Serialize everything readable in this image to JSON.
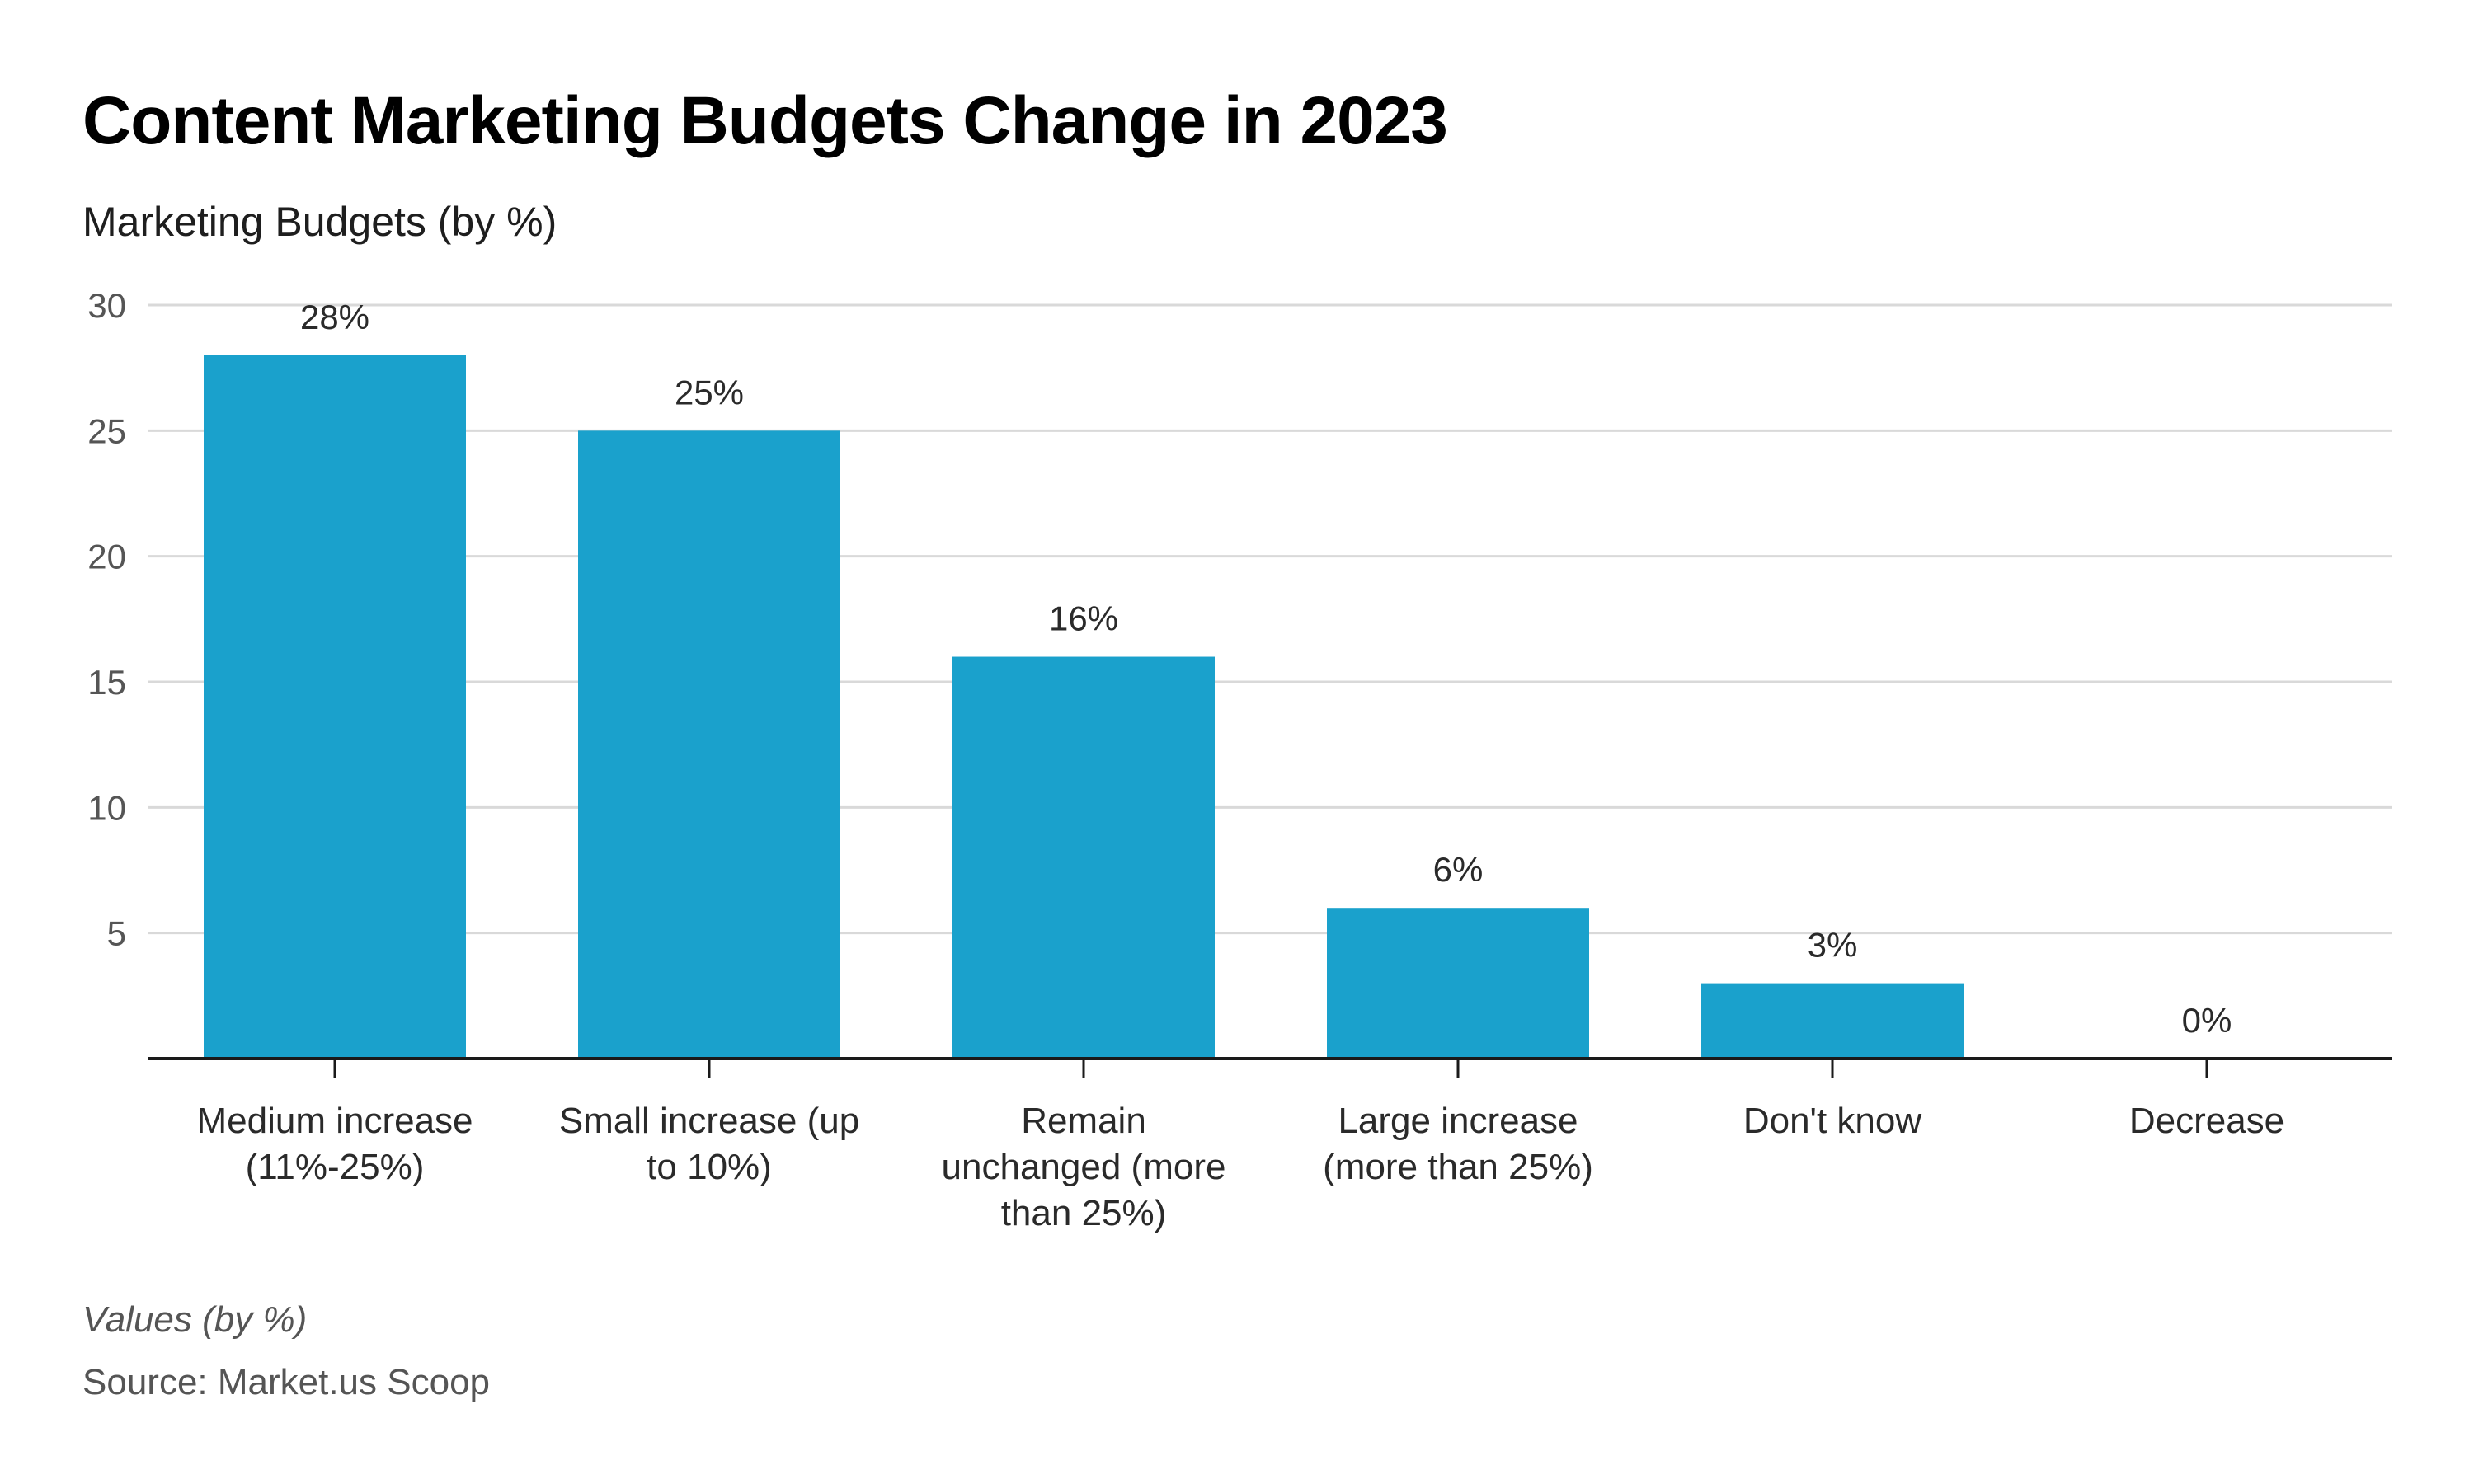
{
  "header": {
    "title": "Content Marketing Budgets Change in 2023",
    "subtitle": "Marketing Budgets (by %)"
  },
  "footer": {
    "note": "Values (by %)",
    "source": "Source: Market.us Scoop"
  },
  "colors": {
    "bar": "#1aa1cc",
    "grid": "#d9d9d9",
    "axis": "#1a1a1a"
  },
  "chart_data": {
    "type": "bar",
    "title": "Content Marketing Budgets Change in 2023",
    "subtitle": "Marketing Budgets (by %)",
    "xlabel": "",
    "ylabel": "",
    "ylim": [
      0,
      30
    ],
    "yticks": [
      5,
      10,
      15,
      20,
      25,
      30
    ],
    "grid": true,
    "legend": "none",
    "categories": [
      [
        "Medium increase",
        "(11%-25%)"
      ],
      [
        "Small increase (up",
        "to 10%)"
      ],
      [
        "Remain",
        "unchanged (more",
        "than 25%)"
      ],
      [
        "Large increase",
        "(more than 25%)"
      ],
      [
        "Don't know"
      ],
      [
        "Decrease"
      ]
    ],
    "values": [
      28,
      25,
      16,
      6,
      3,
      0
    ],
    "data_labels": [
      "28%",
      "25%",
      "16%",
      "6%",
      "3%",
      "0%"
    ]
  }
}
